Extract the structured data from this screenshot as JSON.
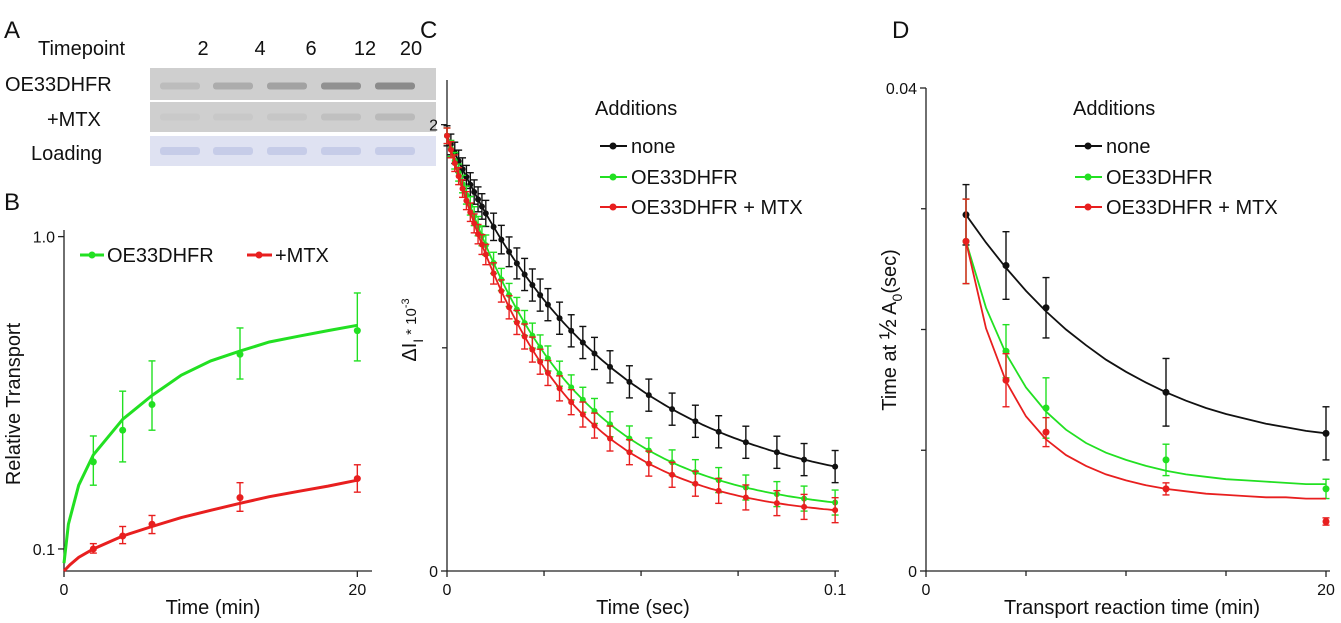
{
  "panels": {
    "A": {
      "letter": "A",
      "timepoint_label": "Timepoint",
      "timepoints": [
        "2",
        "4",
        "6",
        "12",
        "20"
      ],
      "rows": [
        {
          "label": "OE33DHFR",
          "band_intensity": [
            0.18,
            0.35,
            0.45,
            0.62,
            0.68
          ]
        },
        {
          "label": "+MTX",
          "band_intensity": [
            0.05,
            0.06,
            0.08,
            0.15,
            0.2
          ]
        },
        {
          "label": "Loading",
          "band_intensity": [
            0.5,
            0.5,
            0.5,
            0.5,
            0.5
          ]
        }
      ],
      "colors": {
        "gel": "#cfcfcf",
        "band": "#6a6a6a",
        "loading": "#dfe2f2",
        "loading_band": "#aeb5de"
      }
    }
  },
  "chart_data": [
    {
      "panel": "B",
      "type": "line",
      "letter": "B",
      "xlabel": "Time (min)",
      "ylabel": "Relative Transport",
      "xlim": [
        0,
        21
      ],
      "ylim": [
        0.085,
        1.05
      ],
      "log_y": true,
      "x_ticks": [
        {
          "v": 0,
          "label": "0"
        },
        {
          "v": 20,
          "label": "20"
        }
      ],
      "y_ticks": [
        {
          "v": 0.1,
          "label": "0.1"
        },
        {
          "v": 1.0,
          "label": "1.0"
        }
      ],
      "legend_position": "top",
      "series": [
        {
          "name": "OE33DHFR",
          "color": "#22e022",
          "points": [
            {
              "x": 2,
              "y": 0.19,
              "err": [
                0.16,
                0.23
              ]
            },
            {
              "x": 4,
              "y": 0.24,
              "err": [
                0.19,
                0.32
              ]
            },
            {
              "x": 6,
              "y": 0.29,
              "err": [
                0.24,
                0.4
              ]
            },
            {
              "x": 12,
              "y": 0.42,
              "err": [
                0.35,
                0.51
              ]
            },
            {
              "x": 20,
              "y": 0.5,
              "err": [
                0.4,
                0.66
              ]
            }
          ],
          "curve": [
            [
              0,
              0.09
            ],
            [
              0.3,
              0.12
            ],
            [
              1,
              0.16
            ],
            [
              2,
              0.2
            ],
            [
              4,
              0.26
            ],
            [
              6,
              0.31
            ],
            [
              8,
              0.36
            ],
            [
              10,
              0.4
            ],
            [
              12,
              0.43
            ],
            [
              14,
              0.46
            ],
            [
              16,
              0.48
            ],
            [
              18,
              0.5
            ],
            [
              20,
              0.52
            ]
          ]
        },
        {
          "name": "+MTX",
          "color": "#e81f1f",
          "points": [
            {
              "x": 2,
              "y": 0.1,
              "err": [
                0.097,
                0.104
              ]
            },
            {
              "x": 4,
              "y": 0.11,
              "err": [
                0.104,
                0.118
              ]
            },
            {
              "x": 6,
              "y": 0.12,
              "err": [
                0.112,
                0.128
              ]
            },
            {
              "x": 12,
              "y": 0.146,
              "err": [
                0.132,
                0.163
              ]
            },
            {
              "x": 20,
              "y": 0.168,
              "err": [
                0.152,
                0.186
              ]
            }
          ],
          "curve": [
            [
              0,
              0.085
            ],
            [
              0.4,
              0.089
            ],
            [
              1,
              0.094
            ],
            [
              2,
              0.1
            ],
            [
              4,
              0.11
            ],
            [
              6,
              0.118
            ],
            [
              8,
              0.126
            ],
            [
              10,
              0.133
            ],
            [
              12,
              0.14
            ],
            [
              14,
              0.147
            ],
            [
              16,
              0.153
            ],
            [
              18,
              0.159
            ],
            [
              20,
              0.166
            ]
          ]
        }
      ]
    },
    {
      "panel": "C",
      "type": "line",
      "letter": "C",
      "xlabel": "Time (sec)",
      "ylabel_parts": {
        "delta": "ΔI",
        "sub": "I",
        "mult": "* 10",
        "exp": "-3"
      },
      "xlim": [
        0,
        0.101
      ],
      "ylim": [
        0,
        2.2
      ],
      "x_ticks": [
        {
          "v": 0,
          "label": "0"
        },
        {
          "v": 0.1,
          "label": "0.1"
        }
      ],
      "x_minor_ticks": [
        0.025,
        0.05,
        0.075
      ],
      "y_ticks": [
        {
          "v": 0,
          "label": "0"
        },
        {
          "v": 2,
          "label": "2"
        }
      ],
      "y_minor_ticks": [
        1
      ],
      "legend_title": "Additions",
      "legend_position": "top-right",
      "series": [
        {
          "name": "none",
          "color": "#111111",
          "x": [
            0,
            0.001,
            0.002,
            0.003,
            0.004,
            0.005,
            0.006,
            0.007,
            0.008,
            0.009,
            0.01,
            0.012,
            0.014,
            0.016,
            0.018,
            0.02,
            0.022,
            0.024,
            0.026,
            0.029,
            0.032,
            0.035,
            0.038,
            0.042,
            0.047,
            0.052,
            0.058,
            0.064,
            0.07,
            0.077,
            0.085,
            0.092,
            0.1
          ],
          "k": 24,
          "a0": 1.95,
          "plateau": 0.32,
          "err": 0.045
        },
        {
          "name": "OE33DHFR",
          "color": "#22e022",
          "x": [
            0,
            0.001,
            0.002,
            0.003,
            0.004,
            0.005,
            0.006,
            0.007,
            0.008,
            0.009,
            0.01,
            0.012,
            0.014,
            0.016,
            0.018,
            0.02,
            0.022,
            0.024,
            0.026,
            0.029,
            0.032,
            0.035,
            0.038,
            0.042,
            0.047,
            0.052,
            0.058,
            0.064,
            0.07,
            0.077,
            0.085,
            0.092,
            0.1
          ],
          "k": 34,
          "a0": 1.95,
          "plateau": 0.25,
          "err": 0.035
        },
        {
          "name": "OE33DHFR + MTX",
          "color": "#e81f1f",
          "x": [
            0,
            0.001,
            0.002,
            0.003,
            0.004,
            0.005,
            0.006,
            0.007,
            0.008,
            0.009,
            0.01,
            0.012,
            0.014,
            0.016,
            0.018,
            0.02,
            0.022,
            0.024,
            0.026,
            0.029,
            0.032,
            0.035,
            0.038,
            0.042,
            0.047,
            0.052,
            0.058,
            0.064,
            0.07,
            0.077,
            0.085,
            0.092,
            0.1
          ],
          "k": 37,
          "a0": 1.95,
          "plateau": 0.23,
          "err": 0.035
        }
      ]
    },
    {
      "panel": "D",
      "type": "line",
      "letter": "D",
      "xlabel": "Transport reaction time (min)",
      "ylabel_parts": {
        "main": "Time at ",
        "frac": "½",
        "a": " A",
        "sub": "0",
        "unit": "(sec)"
      },
      "xlim": [
        0,
        20.2
      ],
      "ylim": [
        0,
        0.04
      ],
      "x_ticks": [
        {
          "v": 0,
          "label": "0"
        },
        {
          "v": 20,
          "label": "20"
        }
      ],
      "x_minor_ticks": [
        5,
        10,
        15
      ],
      "y_ticks": [
        {
          "v": 0,
          "label": "0"
        },
        {
          "v": 0.04,
          "label": "0.04"
        }
      ],
      "y_minor_ticks": [
        0.01,
        0.02,
        0.03
      ],
      "legend_title": "Additions",
      "legend_position": "top-right",
      "series": [
        {
          "name": "none",
          "color": "#111111",
          "points": [
            {
              "x": 2,
              "y": 0.0295,
              "err": 0.0025
            },
            {
              "x": 4,
              "y": 0.0253,
              "err": 0.0028
            },
            {
              "x": 6,
              "y": 0.0218,
              "err": 0.0025
            },
            {
              "x": 12,
              "y": 0.0148,
              "err": 0.0028
            },
            {
              "x": 20,
              "y": 0.0114,
              "err": 0.0022
            }
          ],
          "curve": [
            [
              2,
              0.0295
            ],
            [
              3,
              0.0272
            ],
            [
              4,
              0.0251
            ],
            [
              5,
              0.0232
            ],
            [
              6,
              0.0215
            ],
            [
              7,
              0.02
            ],
            [
              8,
              0.0187
            ],
            [
              9,
              0.0175
            ],
            [
              10,
              0.0165
            ],
            [
              11,
              0.0156
            ],
            [
              12,
              0.0148
            ],
            [
              13,
              0.0141
            ],
            [
              14,
              0.0135
            ],
            [
              15,
              0.013
            ],
            [
              16,
              0.0126
            ],
            [
              17,
              0.0122
            ],
            [
              18,
              0.0119
            ],
            [
              19,
              0.0116
            ],
            [
              20,
              0.0114
            ]
          ]
        },
        {
          "name": "OE33DHFR",
          "color": "#22e022",
          "points": [
            {
              "x": 2,
              "y": 0.0273,
              "err": 0.0035
            },
            {
              "x": 4,
              "y": 0.0182,
              "err": 0.0022
            },
            {
              "x": 6,
              "y": 0.0135,
              "err": 0.0025
            },
            {
              "x": 12,
              "y": 0.0092,
              "err": 0.0013
            },
            {
              "x": 20,
              "y": 0.0068,
              "err": 0.0008
            }
          ],
          "curve": [
            [
              2,
              0.0273
            ],
            [
              3,
              0.0218
            ],
            [
              4,
              0.018
            ],
            [
              5,
              0.0152
            ],
            [
              6,
              0.0132
            ],
            [
              7,
              0.0117
            ],
            [
              8,
              0.0106
            ],
            [
              9,
              0.0098
            ],
            [
              10,
              0.0092
            ],
            [
              11,
              0.0087
            ],
            [
              12,
              0.0083
            ],
            [
              13,
              0.008
            ],
            [
              14,
              0.0078
            ],
            [
              15,
              0.0076
            ],
            [
              16,
              0.0075
            ],
            [
              17,
              0.0074
            ],
            [
              18,
              0.0073
            ],
            [
              19,
              0.0072
            ],
            [
              20,
              0.0072
            ]
          ]
        },
        {
          "name": "OE33DHFR + MTX",
          "color": "#e81f1f",
          "points": [
            {
              "x": 2,
              "y": 0.0273,
              "err": 0.0035
            },
            {
              "x": 4,
              "y": 0.0158,
              "err": 0.0022
            },
            {
              "x": 6,
              "y": 0.0115,
              "err": 0.0012
            },
            {
              "x": 12,
              "y": 0.0068,
              "err": 0.0005
            },
            {
              "x": 20,
              "y": 0.0041,
              "err": 0.0003
            }
          ],
          "curve": [
            [
              2,
              0.0273
            ],
            [
              3,
              0.0201
            ],
            [
              4,
              0.0157
            ],
            [
              5,
              0.0128
            ],
            [
              6,
              0.0109
            ],
            [
              7,
              0.0096
            ],
            [
              8,
              0.0087
            ],
            [
              9,
              0.008
            ],
            [
              10,
              0.0075
            ],
            [
              11,
              0.0071
            ],
            [
              12,
              0.0068
            ],
            [
              13,
              0.0066
            ],
            [
              14,
              0.0064
            ],
            [
              15,
              0.0063
            ],
            [
              16,
              0.0062
            ],
            [
              17,
              0.0061
            ],
            [
              18,
              0.0061
            ],
            [
              19,
              0.006
            ],
            [
              20,
              0.006
            ]
          ]
        }
      ]
    }
  ]
}
